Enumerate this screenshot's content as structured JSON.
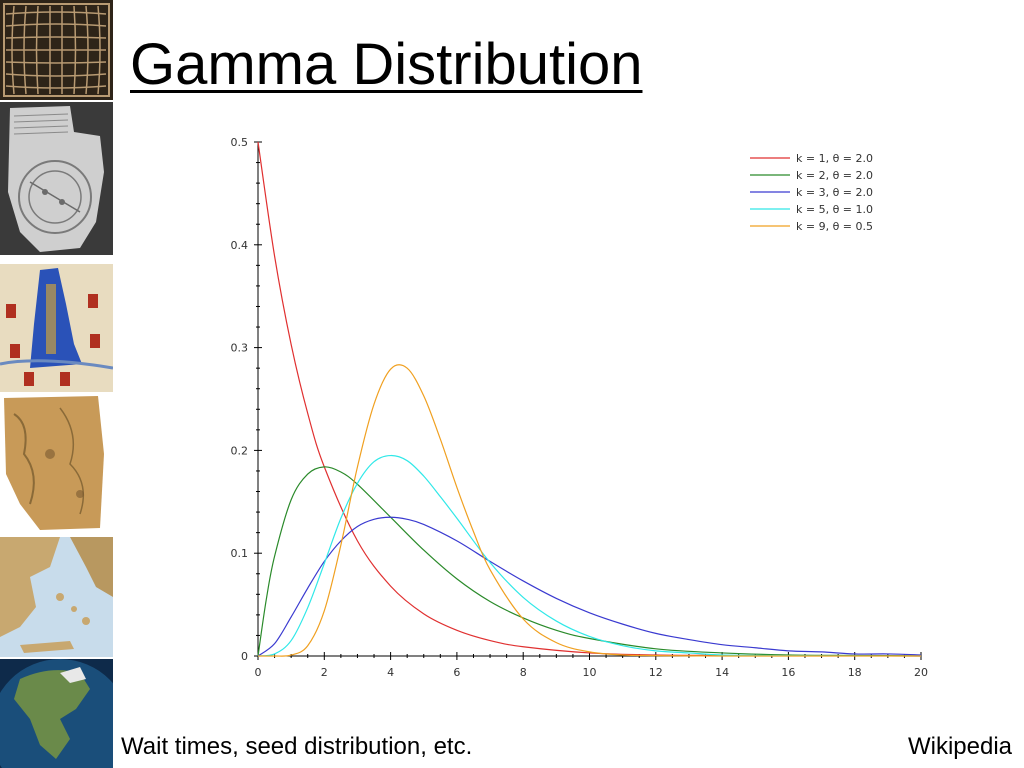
{
  "slide": {
    "title": "Gamma Distribution",
    "caption": "Wait times, seed distribution, etc.",
    "source": "Wikipedia"
  },
  "thumbnails": [
    {
      "name": "grid-map-thumbnail",
      "colors": [
        "#3a2d22",
        "#b89a72"
      ]
    },
    {
      "name": "clay-tablet-map-thumbnail",
      "colors": [
        "#4a4a4a",
        "#d9d9d9"
      ]
    },
    {
      "name": "illuminated-map-thumbnail",
      "colors": [
        "#2a52b8",
        "#e8dcc0"
      ]
    },
    {
      "name": "parchment-map-thumbnail",
      "colors": [
        "#b89050",
        "#e6cc90"
      ]
    },
    {
      "name": "aegean-relief-map-thumbnail",
      "colors": [
        "#c8dceb",
        "#c8a870"
      ]
    },
    {
      "name": "globe-north-america-thumbnail",
      "colors": [
        "#1a4e7a",
        "#6a8a4a"
      ]
    }
  ],
  "chart_data": {
    "type": "line",
    "title": "",
    "xlabel": "",
    "ylabel": "",
    "xlim": [
      0,
      20
    ],
    "ylim": [
      0,
      0.5
    ],
    "x_ticks": [
      "0",
      "2",
      "4",
      "6",
      "8",
      "10",
      "12",
      "14",
      "16",
      "18",
      "20"
    ],
    "y_ticks": [
      "0",
      "0.1",
      "0.2",
      "0.3",
      "0.4",
      "0.5"
    ],
    "grid": false,
    "legend_position": "top-right",
    "series": [
      {
        "name": "k = 1, θ = 2.0",
        "color": "#e03030",
        "x": [
          0,
          0.5,
          1,
          1.5,
          2,
          3,
          4,
          5,
          6,
          7,
          8,
          10,
          12,
          14,
          16,
          18,
          20
        ],
        "y": [
          0.5,
          0.389,
          0.303,
          0.236,
          0.184,
          0.112,
          0.068,
          0.041,
          0.025,
          0.015,
          0.009,
          0.003,
          0.001,
          0.0005,
          0.0002,
          0.0001,
          0.0
        ]
      },
      {
        "name": "k = 2, θ = 2.0",
        "color": "#2a8a2a",
        "x": [
          0,
          0.25,
          0.5,
          1,
          1.5,
          2,
          2.5,
          3,
          4,
          5,
          6,
          7,
          8,
          9,
          10,
          12,
          14,
          16,
          18,
          20
        ],
        "y": [
          0,
          0.055,
          0.097,
          0.152,
          0.177,
          0.184,
          0.179,
          0.167,
          0.135,
          0.103,
          0.075,
          0.053,
          0.037,
          0.025,
          0.017,
          0.007,
          0.003,
          0.001,
          0.0005,
          0.0002
        ]
      },
      {
        "name": "k = 3, θ = 2.0",
        "color": "#3a3ad0",
        "x": [
          0,
          0.5,
          1,
          1.5,
          2,
          2.5,
          3,
          3.5,
          4,
          4.5,
          5,
          6,
          7,
          8,
          9,
          10,
          11,
          12,
          13,
          14,
          15,
          16,
          17,
          18,
          19,
          20
        ],
        "y": [
          0,
          0.012,
          0.038,
          0.066,
          0.092,
          0.112,
          0.126,
          0.133,
          0.135,
          0.133,
          0.128,
          0.112,
          0.092,
          0.073,
          0.056,
          0.042,
          0.031,
          0.022,
          0.016,
          0.011,
          0.008,
          0.005,
          0.004,
          0.002,
          0.002,
          0.001
        ]
      },
      {
        "name": "k = 5, θ = 1.0",
        "color": "#30e8e8",
        "x": [
          0,
          0.5,
          1,
          1.5,
          2,
          2.5,
          3,
          3.5,
          4,
          4.5,
          5,
          5.5,
          6,
          7,
          8,
          9,
          10,
          11,
          12,
          13,
          14,
          16,
          18,
          20
        ],
        "y": [
          0,
          0.002,
          0.015,
          0.047,
          0.09,
          0.134,
          0.168,
          0.189,
          0.195,
          0.19,
          0.175,
          0.155,
          0.134,
          0.091,
          0.057,
          0.034,
          0.019,
          0.01,
          0.005,
          0.003,
          0.001,
          0.0003,
          0.0001,
          0.0
        ]
      },
      {
        "name": "k = 9, θ = 0.5",
        "color": "#f0a020",
        "x": [
          0,
          0.5,
          1,
          1.5,
          2,
          2.5,
          3,
          3.5,
          4,
          4.5,
          5,
          5.5,
          6,
          6.5,
          7,
          8,
          9,
          10,
          11,
          12,
          14,
          16,
          18,
          20
        ],
        "y": [
          0,
          0.0,
          0.0009,
          0.01,
          0.044,
          0.108,
          0.184,
          0.245,
          0.279,
          0.28,
          0.253,
          0.211,
          0.164,
          0.121,
          0.084,
          0.036,
          0.013,
          0.004,
          0.001,
          0.0004,
          0.0,
          0.0,
          0.0,
          0.0
        ]
      }
    ]
  }
}
